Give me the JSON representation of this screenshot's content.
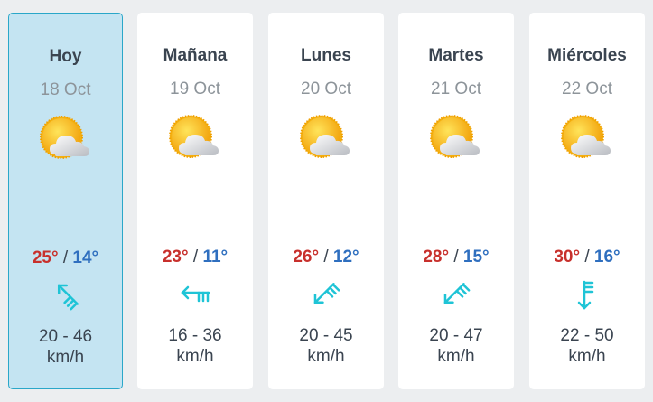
{
  "colors": {
    "max_temp": "#c8302c",
    "min_temp": "#2f6fbf",
    "wind_icon": "#1fc4d6",
    "selected_bg": "#c4e4f2"
  },
  "days": [
    {
      "name": "Hoy",
      "date": "18 Oct",
      "icon": "sun-cloud-icon",
      "max": "25°",
      "min": "14°",
      "separator": "/",
      "wind_direction": "northwest",
      "wind_rotation_deg": 135,
      "wind": "20 - 46",
      "unit": "km/h",
      "selected": true
    },
    {
      "name": "Mañana",
      "date": "19 Oct",
      "icon": "sun-cloud-icon",
      "max": "23°",
      "min": "11°",
      "separator": "/",
      "wind_direction": "west",
      "wind_rotation_deg": 90,
      "wind": "16 - 36",
      "unit": "km/h"
    },
    {
      "name": "Lunes",
      "date": "20 Oct",
      "icon": "sun-cloud-icon",
      "max": "26°",
      "min": "12°",
      "separator": "/",
      "wind_direction": "southwest",
      "wind_rotation_deg": 45,
      "wind": "20 - 45",
      "unit": "km/h"
    },
    {
      "name": "Martes",
      "date": "21 Oct",
      "icon": "sun-cloud-icon",
      "max": "28°",
      "min": "15°",
      "separator": "/",
      "wind_direction": "southwest",
      "wind_rotation_deg": 45,
      "wind": "20 - 47",
      "unit": "km/h"
    },
    {
      "name": "Miércoles",
      "date": "22 Oct",
      "icon": "sun-cloud-icon",
      "max": "30°",
      "min": "16°",
      "separator": "/",
      "wind_direction": "south",
      "wind_rotation_deg": 0,
      "wind": "22 - 50",
      "unit": "km/h"
    }
  ]
}
